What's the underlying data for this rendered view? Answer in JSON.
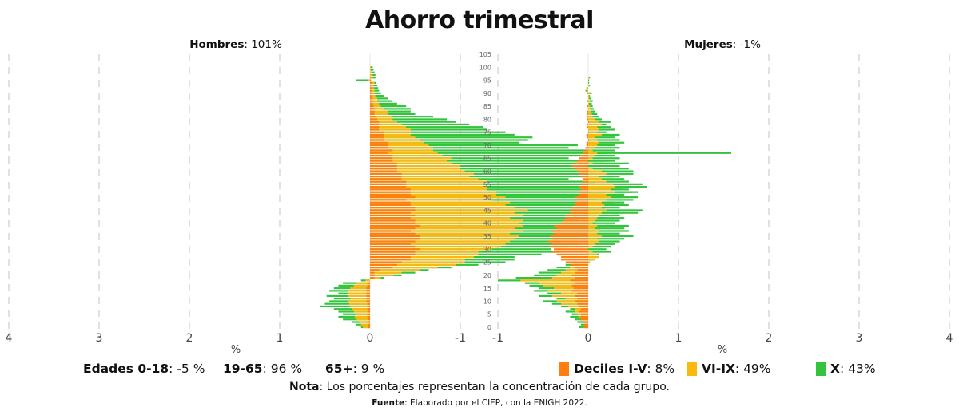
{
  "title": "Ahorro trimestral",
  "panels": {
    "men": {
      "label": "Hombres",
      "value": ": 101%"
    },
    "women": {
      "label": "Mujeres",
      "value": ": -1%"
    }
  },
  "age_groups": [
    {
      "label": "Edades 0-18",
      "value": ": -5 %"
    },
    {
      "label": "19-65",
      "value": ": 96 %"
    },
    {
      "label": "65+",
      "value": ": 9 %"
    }
  ],
  "legend": [
    {
      "label": "Deciles I-V",
      "value": ": 8%",
      "color": "#ff7f0e"
    },
    {
      "label": "VI-IX",
      "value": ": 49%",
      "color": "#fbb80f"
    },
    {
      "label": "X",
      "value": ": 43%",
      "color": "#33c33c"
    }
  ],
  "note": {
    "label": "Nota",
    "text": ": Los porcentajes representan la concentración de cada grupo."
  },
  "source": {
    "label": "Fuente",
    "text": ": Elaborado por el CIEP, con la ENIGH 2022."
  },
  "chart_data": {
    "type": "bar",
    "orientation": "horizontal-stacked-pyramid",
    "xlabel": "%",
    "men_x_ticks": [
      "4",
      "3",
      "2",
      "1",
      "0",
      "-1"
    ],
    "women_x_ticks": [
      "-1",
      "0",
      "1",
      "2",
      "3",
      "4"
    ],
    "x_range": [
      -1,
      4
    ],
    "y_range": [
      0,
      105
    ],
    "y_ticks": [
      0,
      5,
      10,
      15,
      20,
      25,
      30,
      35,
      40,
      45,
      50,
      55,
      60,
      65,
      70,
      75,
      80,
      85,
      90,
      95,
      100,
      105
    ],
    "grid": true,
    "stacking": "cumulative: each series value is the extent of the bar from 0; series drawn X behind VI-IX behind Deciles I-V",
    "ages": [
      0,
      1,
      2,
      3,
      4,
      5,
      6,
      7,
      8,
      9,
      10,
      11,
      12,
      13,
      14,
      15,
      16,
      17,
      18,
      19,
      20,
      21,
      22,
      23,
      24,
      25,
      26,
      27,
      28,
      29,
      30,
      31,
      32,
      33,
      34,
      35,
      36,
      37,
      38,
      39,
      40,
      41,
      42,
      43,
      44,
      45,
      46,
      47,
      48,
      49,
      50,
      51,
      52,
      53,
      54,
      55,
      56,
      57,
      58,
      59,
      60,
      61,
      62,
      63,
      64,
      65,
      66,
      67,
      68,
      69,
      70,
      71,
      72,
      73,
      74,
      75,
      76,
      77,
      78,
      79,
      80,
      81,
      82,
      83,
      84,
      85,
      86,
      87,
      88,
      89,
      90,
      91,
      92,
      93,
      94,
      95,
      96,
      97,
      98,
      99,
      100
    ],
    "men": {
      "deciles_I_V": [
        0.02,
        0.02,
        0.03,
        0.02,
        0.03,
        0.03,
        0.03,
        0.03,
        0.03,
        0.03,
        0.04,
        0.04,
        0.04,
        0.04,
        0.04,
        0.04,
        0.03,
        0.03,
        0.0,
        -0.05,
        -0.05,
        -0.05,
        -0.1,
        -0.25,
        -0.3,
        -0.35,
        -0.45,
        -0.45,
        -0.5,
        -0.5,
        -0.55,
        -0.5,
        -0.45,
        -0.5,
        -0.55,
        -0.55,
        -0.5,
        -0.45,
        -0.5,
        -0.55,
        -0.5,
        -0.5,
        -0.45,
        -0.5,
        -0.45,
        -0.5,
        -0.5,
        -0.45,
        -0.45,
        -0.4,
        -0.5,
        -0.45,
        -0.45,
        -0.45,
        -0.4,
        -0.4,
        -0.4,
        -0.35,
        -0.35,
        -0.35,
        -0.3,
        -0.3,
        -0.3,
        -0.3,
        -0.25,
        -0.25,
        -0.25,
        -0.2,
        -0.25,
        -0.2,
        -0.2,
        -0.2,
        -0.15,
        -0.15,
        -0.15,
        -0.15,
        -0.1,
        -0.1,
        -0.1,
        -0.1,
        -0.08,
        -0.07,
        -0.05,
        -0.05,
        -0.05,
        -0.04,
        -0.03,
        -0.03,
        -0.03,
        -0.02,
        -0.02,
        -0.02,
        -0.02,
        -0.01,
        -0.02,
        -0.01,
        -0.01,
        0.0,
        0.0,
        0.0,
        0.0
      ],
      "deciles_VI_IX": [
        0.08,
        0.1,
        0.12,
        0.15,
        0.17,
        0.16,
        0.18,
        0.2,
        0.22,
        0.23,
        0.25,
        0.22,
        0.24,
        0.25,
        0.25,
        0.22,
        0.18,
        0.15,
        0.05,
        -0.12,
        -0.26,
        -0.35,
        -0.55,
        -0.75,
        -0.95,
        -1.05,
        -1.05,
        -1.15,
        -1.2,
        -1.2,
        -1.35,
        -1.45,
        -1.5,
        -1.55,
        -1.6,
        -1.65,
        -1.55,
        -1.7,
        -1.6,
        -1.7,
        -1.65,
        -1.7,
        -1.55,
        -1.7,
        -1.6,
        -1.75,
        -1.6,
        -1.5,
        -1.55,
        -1.35,
        -1.5,
        -1.4,
        -1.4,
        -1.3,
        -1.3,
        -1.25,
        -1.3,
        -1.2,
        -1.1,
        -1.15,
        -1.05,
        -1.0,
        -1.0,
        -0.9,
        -0.85,
        -0.9,
        -0.8,
        -0.75,
        -0.7,
        -0.7,
        -0.65,
        -0.6,
        -0.55,
        -0.5,
        -0.45,
        -0.45,
        -0.45,
        -0.4,
        -0.35,
        -0.3,
        -0.25,
        -0.25,
        -0.2,
        -0.2,
        -0.15,
        -0.12,
        -0.1,
        -0.08,
        -0.08,
        -0.06,
        -0.05,
        -0.05,
        -0.04,
        -0.04,
        -0.05,
        0.02,
        -0.03,
        -0.03,
        -0.02,
        -0.01,
        -0.01
      ],
      "decile_X": [
        0.1,
        0.15,
        0.2,
        0.3,
        0.35,
        0.3,
        0.35,
        0.4,
        0.55,
        0.5,
        0.45,
        0.4,
        0.48,
        0.35,
        0.45,
        0.4,
        0.35,
        0.3,
        0.1,
        -0.15,
        -0.35,
        -0.5,
        -0.65,
        -0.9,
        -1.2,
        -1.5,
        -1.6,
        -1.6,
        -1.9,
        -2.1,
        -2.0,
        -2.2,
        -2.3,
        -2.1,
        -2.5,
        -2.3,
        -2.4,
        -2.5,
        -2.55,
        -2.7,
        -2.5,
        -2.3,
        -2.6,
        -2.4,
        -2.75,
        -2.6,
        -2.6,
        -2.8,
        -2.7,
        -2.5,
        -2.8,
        -2.6,
        -2.9,
        -2.8,
        -2.4,
        -2.5,
        -2.5,
        -2.2,
        -2.7,
        -2.5,
        -2.6,
        -2.4,
        -2.5,
        -2.6,
        -2.65,
        -2.2,
        -2.7,
        -4.0,
        -2.5,
        -2.2,
        -2.3,
        -1.65,
        -1.75,
        -1.8,
        -1.6,
        -1.5,
        -1.3,
        -1.25,
        -1.1,
        -0.95,
        -0.85,
        -0.7,
        -0.5,
        -0.45,
        -0.45,
        -0.4,
        -0.3,
        -0.25,
        -0.2,
        -0.15,
        -0.12,
        -0.1,
        -0.09,
        -0.08,
        -0.07,
        0.15,
        -0.06,
        -0.06,
        -0.05,
        -0.04,
        -0.03
      ]
    },
    "women": {
      "deciles_I_V": [
        -0.05,
        -0.04,
        -0.06,
        -0.08,
        -0.09,
        -0.08,
        -0.1,
        -0.08,
        -0.1,
        -0.12,
        -0.14,
        -0.12,
        -0.15,
        -0.12,
        -0.18,
        -0.16,
        -0.18,
        -0.15,
        -0.2,
        -0.15,
        -0.18,
        -0.15,
        -0.12,
        -0.15,
        -0.2,
        -0.25,
        -0.3,
        -0.3,
        -0.35,
        -0.4,
        -0.38,
        -0.42,
        -0.4,
        -0.45,
        -0.4,
        -0.42,
        -0.38,
        -0.4,
        -0.35,
        -0.38,
        -0.3,
        -0.28,
        -0.25,
        -0.25,
        -0.2,
        -0.2,
        -0.18,
        -0.15,
        -0.15,
        -0.12,
        -0.15,
        -0.1,
        -0.1,
        -0.08,
        -0.1,
        -0.08,
        -0.06,
        -0.06,
        -0.08,
        -0.1,
        -0.12,
        -0.15,
        -0.18,
        -0.15,
        -0.12,
        -0.1,
        -0.08,
        -0.06,
        -0.04,
        -0.03,
        -0.02,
        -0.02,
        0.01,
        -0.01,
        -0.02,
        0.01,
        0.0,
        -0.01,
        -0.01,
        0.01,
        -0.01,
        -0.01,
        -0.01,
        -0.01,
        0.0,
        -0.01,
        0.0,
        -0.01,
        0.0,
        0.0,
        -0.01,
        0.0,
        0.0,
        0.0,
        0.0,
        0.0,
        0.0,
        0.0,
        0.0,
        0.0,
        0.0
      ],
      "deciles_VI_IX": [
        -0.05,
        -0.03,
        -0.06,
        -0.08,
        -0.1,
        -0.12,
        -0.15,
        -0.15,
        -0.22,
        -0.3,
        -0.35,
        -0.25,
        -0.4,
        -0.3,
        -0.45,
        -0.38,
        -0.5,
        -0.55,
        -0.75,
        -0.4,
        -0.35,
        -0.3,
        -0.25,
        -0.2,
        -0.1,
        0.02,
        0.08,
        0.12,
        0.1,
        0.05,
        0.0,
        0.05,
        0.08,
        0.12,
        0.1,
        0.15,
        0.1,
        0.12,
        0.08,
        0.1,
        0.05,
        0.08,
        0.1,
        0.12,
        0.15,
        0.2,
        0.15,
        0.18,
        0.15,
        0.2,
        0.25,
        0.2,
        0.3,
        0.25,
        0.3,
        0.28,
        0.2,
        0.15,
        0.12,
        0.2,
        0.15,
        0.05,
        -0.05,
        0.05,
        0.0,
        0.05,
        0.08,
        0.1,
        0.05,
        0.08,
        0.1,
        0.12,
        0.1,
        0.08,
        0.15,
        0.1,
        0.12,
        0.1,
        0.15,
        0.12,
        0.08,
        0.05,
        0.04,
        0.03,
        0.02,
        0.02,
        0.01,
        0.02,
        0.01,
        0.01,
        0.02,
        -0.02,
        -0.01,
        0.01,
        0.0,
        0.0,
        0.01,
        0.0,
        0.0,
        0.0,
        0.0
      ],
      "decile_X": [
        -0.1,
        -0.08,
        -0.12,
        -0.15,
        -0.2,
        -0.18,
        -0.25,
        -0.2,
        -0.3,
        -0.4,
        -0.5,
        -0.35,
        -0.55,
        -0.45,
        -0.6,
        -0.55,
        -0.65,
        -0.7,
        -1.0,
        -0.8,
        -0.6,
        -0.55,
        -0.45,
        -0.35,
        -0.25,
        -0.1,
        0.05,
        0.1,
        0.12,
        0.25,
        0.2,
        0.25,
        0.3,
        0.35,
        0.4,
        0.5,
        0.35,
        0.45,
        0.4,
        0.45,
        0.3,
        0.35,
        0.4,
        0.35,
        0.55,
        0.6,
        0.35,
        0.45,
        0.4,
        0.5,
        0.55,
        0.4,
        0.55,
        0.45,
        0.65,
        0.6,
        0.45,
        0.4,
        0.35,
        0.5,
        0.5,
        0.45,
        0.35,
        0.45,
        0.3,
        0.35,
        0.3,
        0.25,
        0.3,
        0.35,
        0.3,
        0.4,
        0.35,
        0.3,
        0.35,
        0.2,
        0.3,
        0.25,
        0.2,
        0.25,
        0.15,
        0.12,
        0.1,
        0.08,
        0.06,
        0.05,
        0.04,
        0.05,
        0.03,
        0.02,
        0.04,
        -0.03,
        -0.02,
        0.02,
        0.01,
        0.01,
        0.02,
        0.0,
        0.0,
        0.0,
        0.0
      ]
    }
  }
}
